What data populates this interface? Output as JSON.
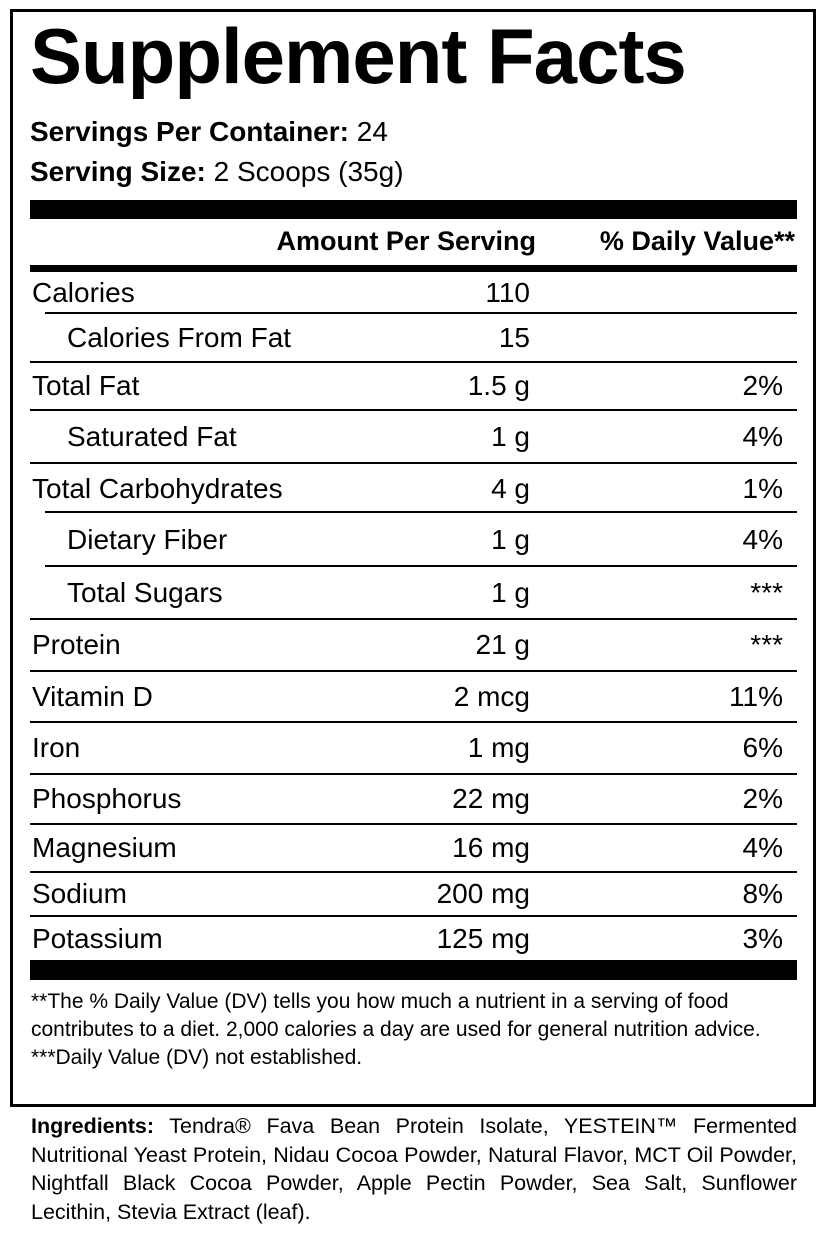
{
  "title": "Supplement Facts",
  "servings_per_container": {
    "label": "Servings Per Container:",
    "value": "24"
  },
  "serving_size": {
    "label": "Serving Size:",
    "value": "2 Scoops (35g)"
  },
  "header": {
    "amount": "Amount Per Serving",
    "dv": "% Daily Value**"
  },
  "rows": [
    {
      "name": "Calories",
      "amount": "110",
      "dv": ""
    },
    {
      "name": "Calories From Fat",
      "amount": "15",
      "dv": ""
    },
    {
      "name": "Total Fat",
      "amount": "1.5 g",
      "dv": "2%"
    },
    {
      "name": "Saturated Fat",
      "amount": "1 g",
      "dv": "4%"
    },
    {
      "name": "Total Carbohydrates",
      "amount": "4 g",
      "dv": "1%"
    },
    {
      "name": "Dietary Fiber",
      "amount": "1 g",
      "dv": "4%"
    },
    {
      "name": "Total Sugars",
      "amount": "1 g",
      "dv": "***"
    },
    {
      "name": "Protein",
      "amount": "21 g",
      "dv": "***"
    },
    {
      "name": "Vitamin D",
      "amount": "2 mcg",
      "dv": "11%"
    },
    {
      "name": "Iron",
      "amount": "1 mg",
      "dv": "6%"
    },
    {
      "name": "Phosphorus",
      "amount": "22 mg",
      "dv": "2%"
    },
    {
      "name": "Magnesium",
      "amount": "16 mg",
      "dv": "4%"
    },
    {
      "name": "Sodium",
      "amount": "200 mg",
      "dv": "8%"
    },
    {
      "name": "Potassium",
      "amount": "125 mg",
      "dv": "3%"
    }
  ],
  "footnotes": {
    "dv_note": "**The % Daily Value (DV) tells you how much a nutrient in a serving of food contributes to a diet. 2,000 calories a day are used for general nutrition advice.",
    "not_established": "***Daily Value (DV) not established."
  },
  "ingredients": {
    "label": "Ingredients:",
    "text": "Tendra® Fava Bean Protein Isolate, YESTEIN™ Fermented Nutritional Yeast Protein, Nidau Cocoa Powder, Natural Flavor, MCT Oil Powder, Nightfall Black Cocoa Powder, Apple Pectin Powder, Sea Salt, Sunflower Lecithin, Stevia Extract (leaf)."
  }
}
